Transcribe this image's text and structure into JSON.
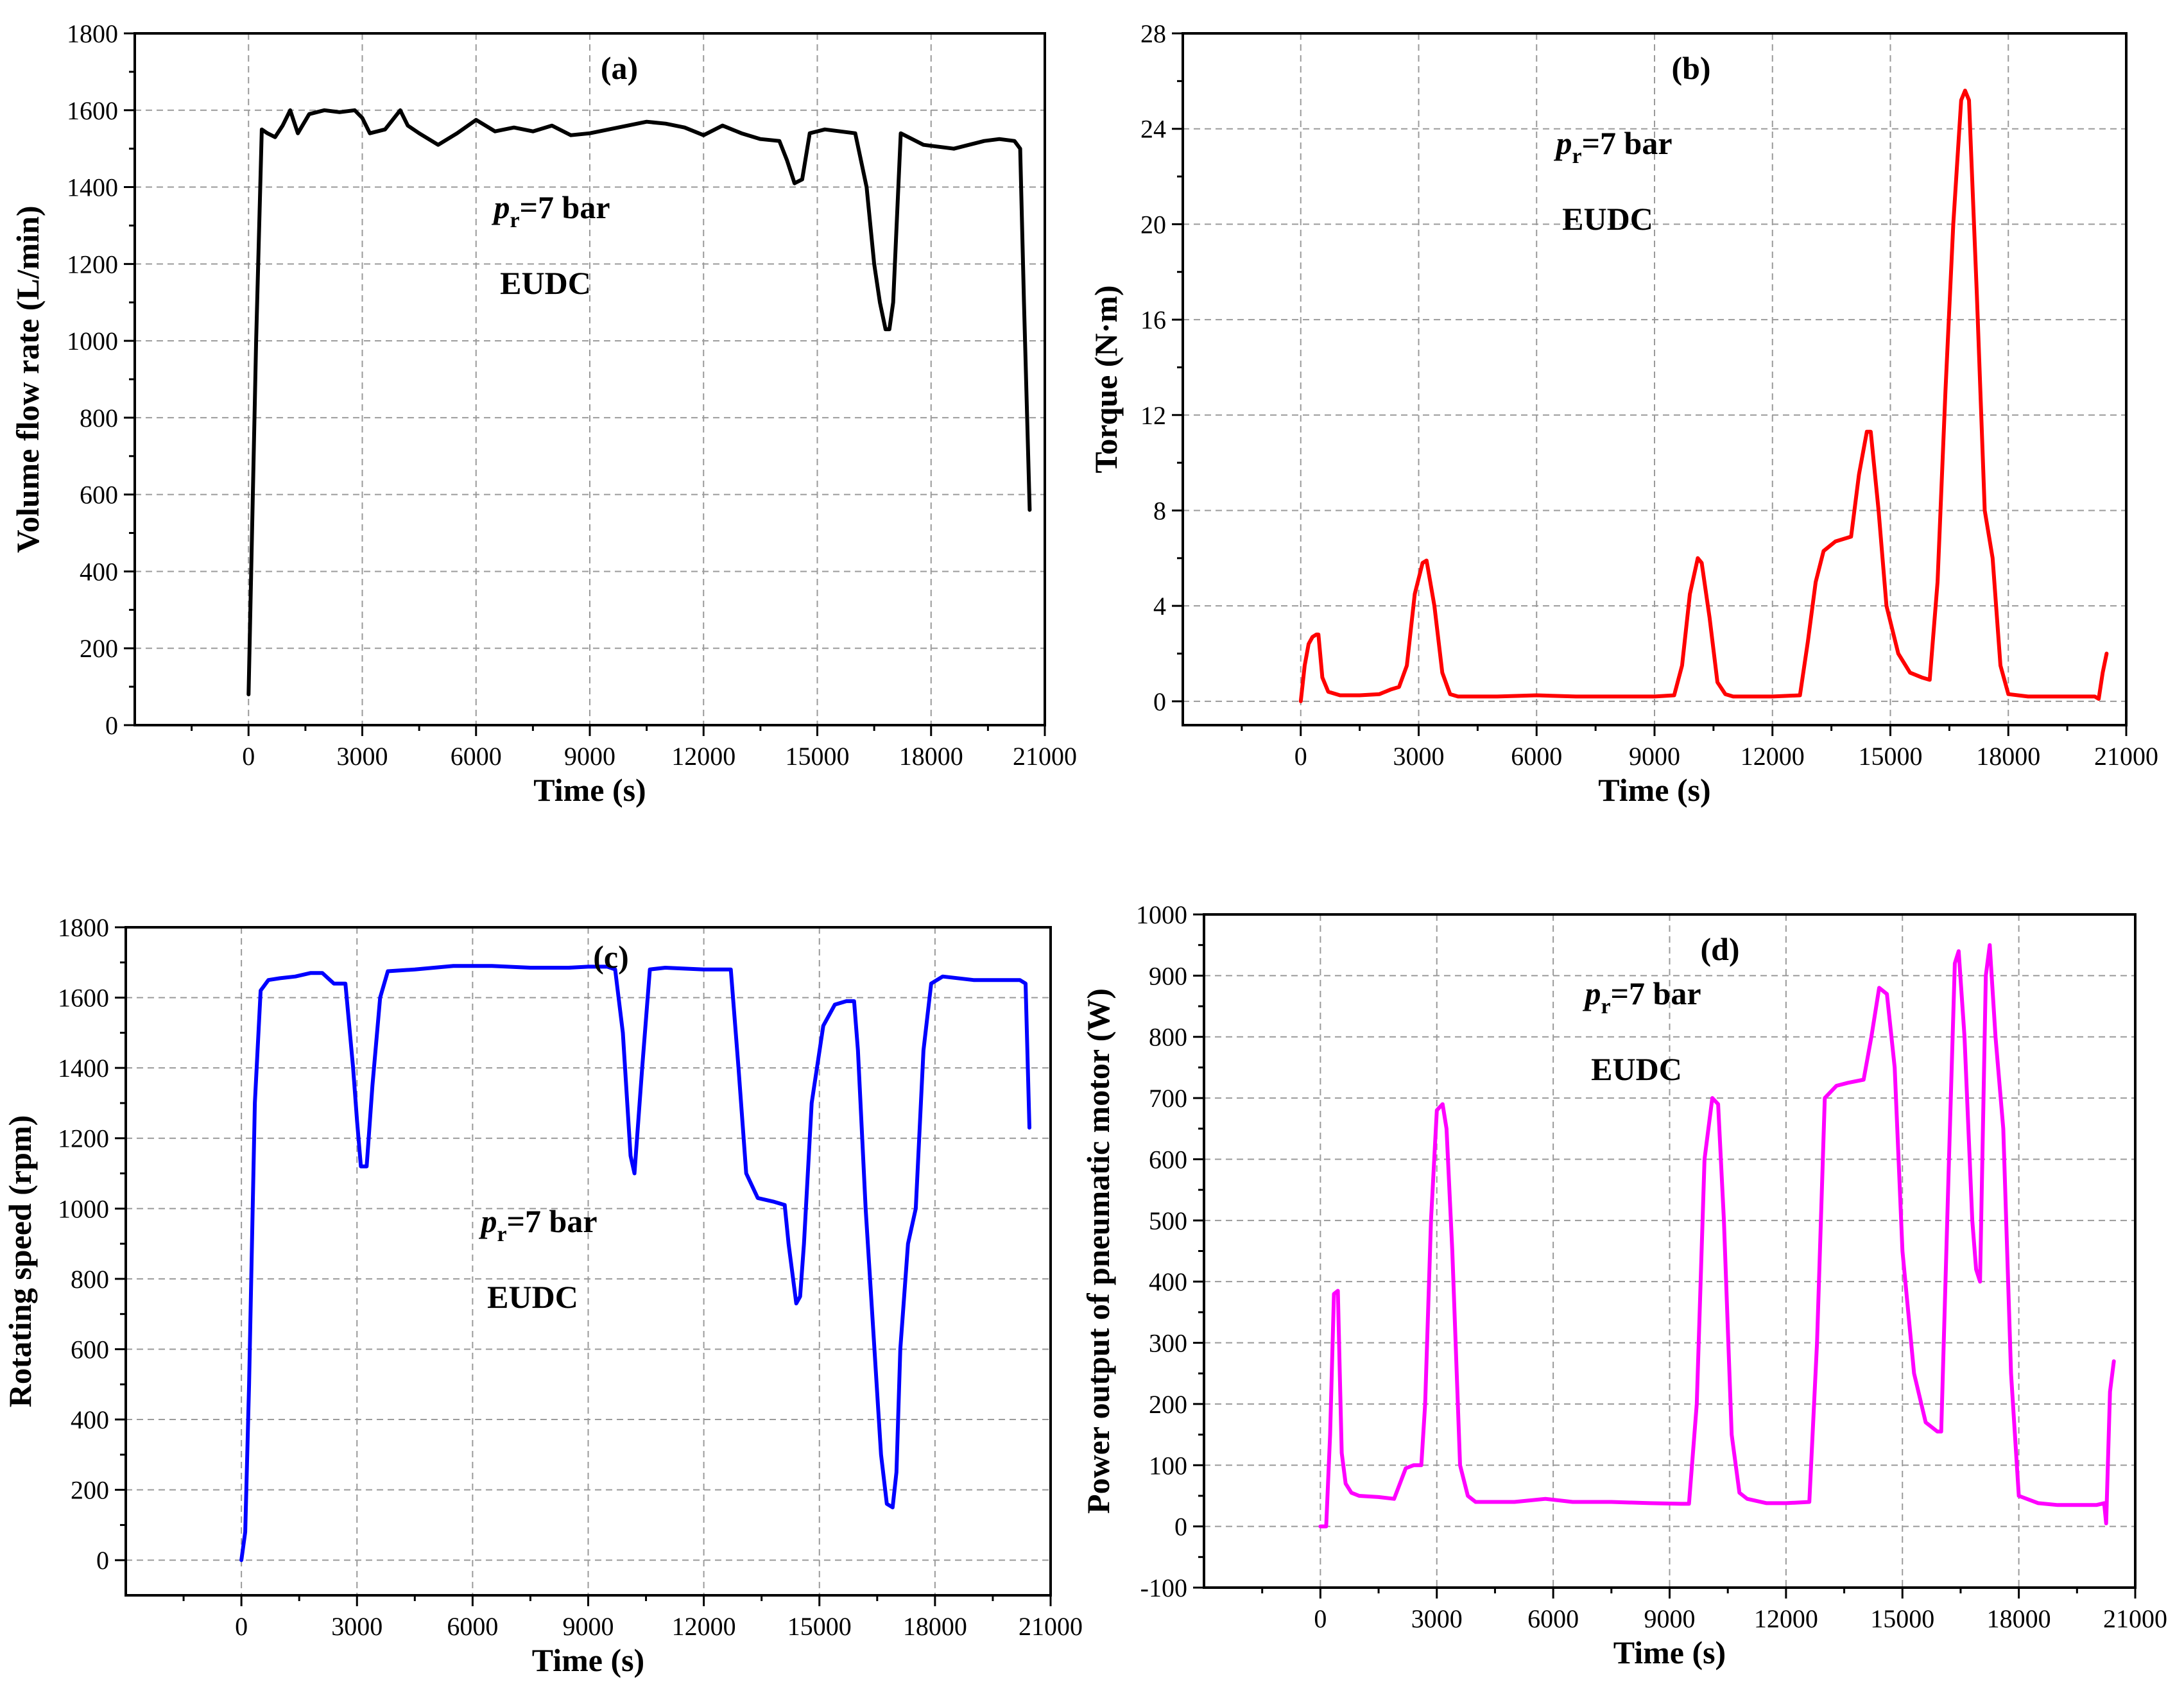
{
  "chart_data": [
    {
      "type": "line",
      "panel": "(a)",
      "color": "#000000",
      "xlabel": "Time (s)",
      "ylabel": "Volume flow rate  (L/min)",
      "xlim": [
        -3000,
        21000
      ],
      "ylim": [
        0,
        1800
      ],
      "xticks": [
        0,
        3000,
        6000,
        9000,
        12000,
        15000,
        18000,
        21000
      ],
      "yticks": [
        0,
        200,
        400,
        600,
        800,
        1000,
        1200,
        1400,
        1600,
        1800
      ],
      "grid": true,
      "annotation": {
        "p": "p",
        "sub": "r",
        "rest": "=7 bar",
        "cycle": "EUDC"
      },
      "x": [
        0,
        200,
        350,
        500,
        700,
        900,
        1100,
        1300,
        1600,
        2000,
        2400,
        2800,
        3000,
        3200,
        3600,
        4000,
        4200,
        4500,
        5000,
        5500,
        6000,
        6500,
        7000,
        7500,
        8000,
        8500,
        9000,
        9500,
        10000,
        10500,
        11000,
        11500,
        12000,
        12500,
        13000,
        13500,
        14000,
        14200,
        14400,
        14600,
        14800,
        15200,
        15600,
        16000,
        16300,
        16500,
        16650,
        16800,
        16900,
        17000,
        17200,
        17400,
        17800,
        18200,
        18600,
        19000,
        19400,
        19800,
        20200,
        20350,
        20450,
        20600
      ],
      "y": [
        80,
        1000,
        1550,
        1540,
        1530,
        1560,
        1600,
        1540,
        1590,
        1600,
        1595,
        1600,
        1580,
        1540,
        1550,
        1600,
        1560,
        1540,
        1510,
        1540,
        1575,
        1545,
        1555,
        1545,
        1560,
        1535,
        1540,
        1550,
        1560,
        1570,
        1565,
        1555,
        1535,
        1560,
        1540,
        1525,
        1520,
        1470,
        1410,
        1420,
        1540,
        1550,
        1545,
        1540,
        1400,
        1200,
        1100,
        1030,
        1030,
        1100,
        1540,
        1530,
        1510,
        1505,
        1500,
        1510,
        1520,
        1525,
        1520,
        1500,
        1100,
        560
      ]
    },
    {
      "type": "line",
      "panel": "(b)",
      "color": "#ff0000",
      "xlabel": "Time (s)",
      "ylabel": "Torque (N·m)",
      "xlim": [
        -3000,
        21000
      ],
      "ylim": [
        -1,
        28
      ],
      "xticks": [
        0,
        3000,
        6000,
        9000,
        12000,
        15000,
        18000,
        21000
      ],
      "yticks": [
        0,
        4,
        8,
        12,
        16,
        20,
        24,
        28
      ],
      "grid": true,
      "annotation": {
        "p": "p",
        "sub": "r",
        "rest": "=7 bar",
        "cycle": "EUDC"
      },
      "x": [
        0,
        100,
        200,
        300,
        400,
        450,
        550,
        700,
        1000,
        1500,
        2000,
        2300,
        2500,
        2700,
        2900,
        3100,
        3200,
        3400,
        3600,
        3800,
        4000,
        5000,
        6000,
        7000,
        8000,
        9000,
        9500,
        9700,
        9900,
        10100,
        10200,
        10400,
        10600,
        10800,
        11000,
        12000,
        12700,
        12900,
        13100,
        13300,
        13600,
        14000,
        14200,
        14400,
        14500,
        14700,
        14900,
        15200,
        15500,
        15800,
        16000,
        16200,
        16400,
        16600,
        16800,
        16900,
        17000,
        17200,
        17400,
        17600,
        17800,
        18000,
        18500,
        19000,
        19500,
        20000,
        20200,
        20300,
        20400,
        20500
      ],
      "y": [
        0,
        1.5,
        2.4,
        2.7,
        2.8,
        2.8,
        1.0,
        0.4,
        0.25,
        0.25,
        0.3,
        0.5,
        0.6,
        1.5,
        4.5,
        5.8,
        5.9,
        4.0,
        1.2,
        0.3,
        0.2,
        0.2,
        0.25,
        0.2,
        0.2,
        0.2,
        0.25,
        1.5,
        4.5,
        6.0,
        5.8,
        3.5,
        0.8,
        0.3,
        0.2,
        0.2,
        0.25,
        2.5,
        5.0,
        6.3,
        6.7,
        6.9,
        9.5,
        11.3,
        11.3,
        8.0,
        4.0,
        2.0,
        1.2,
        1.0,
        0.9,
        5.0,
        13.0,
        20.0,
        25.2,
        25.6,
        25.2,
        17.0,
        8.0,
        6.0,
        1.5,
        0.3,
        0.2,
        0.2,
        0.2,
        0.2,
        0.2,
        0.1,
        1.2,
        2.0
      ]
    },
    {
      "type": "line",
      "panel": "(c)",
      "color": "#0000ff",
      "xlabel": "Time (s)",
      "ylabel": "Rotating speed (rpm)",
      "xlim": [
        -3000,
        21000
      ],
      "ylim": [
        -100,
        1800
      ],
      "xticks": [
        0,
        3000,
        6000,
        9000,
        12000,
        15000,
        18000,
        21000
      ],
      "yticks": [
        0,
        200,
        400,
        600,
        800,
        1000,
        1200,
        1400,
        1600,
        1800
      ],
      "grid": true,
      "annotation": {
        "p": "p",
        "sub": "r",
        "rest": "=7 bar",
        "cycle": "EUDC"
      },
      "x": [
        0,
        100,
        200,
        350,
        500,
        700,
        1000,
        1400,
        1800,
        2100,
        2400,
        2700,
        2900,
        3000,
        3100,
        3250,
        3400,
        3600,
        3800,
        4500,
        5500,
        6500,
        7500,
        8500,
        9000,
        9500,
        9700,
        9900,
        10100,
        10200,
        10400,
        10600,
        11000,
        12000,
        12700,
        12900,
        13100,
        13400,
        13800,
        14100,
        14200,
        14400,
        14500,
        14600,
        14800,
        15100,
        15400,
        15700,
        15900,
        16000,
        16200,
        16400,
        16600,
        16750,
        16900,
        17000,
        17100,
        17300,
        17500,
        17700,
        17900,
        18200,
        19000,
        19500,
        20000,
        20200,
        20350,
        20450
      ],
      "y": [
        0,
        80,
        500,
        1300,
        1620,
        1650,
        1655,
        1660,
        1670,
        1670,
        1640,
        1640,
        1400,
        1250,
        1120,
        1120,
        1350,
        1600,
        1675,
        1680,
        1690,
        1690,
        1685,
        1685,
        1688,
        1688,
        1680,
        1500,
        1150,
        1100,
        1400,
        1680,
        1685,
        1680,
        1680,
        1400,
        1100,
        1030,
        1020,
        1010,
        900,
        730,
        750,
        900,
        1300,
        1520,
        1580,
        1590,
        1590,
        1450,
        1000,
        650,
        300,
        160,
        150,
        250,
        600,
        900,
        1000,
        1450,
        1640,
        1660,
        1650,
        1650,
        1650,
        1650,
        1640,
        1230
      ]
    },
    {
      "type": "line",
      "panel": "(d)",
      "color": "#ff00ff",
      "xlabel": "Time (s)",
      "ylabel": "Power output of pneumatic motor (W)",
      "xlim": [
        -3000,
        21000
      ],
      "ylim": [
        -100,
        1000
      ],
      "xticks": [
        0,
        3000,
        6000,
        9000,
        12000,
        15000,
        18000,
        21000
      ],
      "yticks": [
        -100,
        0,
        100,
        200,
        300,
        400,
        500,
        600,
        700,
        800,
        900,
        1000
      ],
      "grid": true,
      "annotation": {
        "p": "p",
        "sub": "r",
        "rest": "=7 bar",
        "cycle": "EUDC"
      },
      "x": [
        0,
        150,
        250,
        350,
        450,
        500,
        550,
        650,
        800,
        1000,
        1500,
        1900,
        2200,
        2400,
        2600,
        2700,
        2850,
        3000,
        3150,
        3250,
        3400,
        3600,
        3800,
        4000,
        5000,
        5800,
        6500,
        7500,
        8500,
        9300,
        9500,
        9700,
        9900,
        10100,
        10250,
        10400,
        10600,
        10800,
        11000,
        11500,
        12000,
        12600,
        12800,
        13000,
        13300,
        13600,
        14000,
        14200,
        14400,
        14600,
        14800,
        15000,
        15300,
        15600,
        15900,
        16000,
        16200,
        16350,
        16450,
        16600,
        16800,
        16900,
        17000,
        17150,
        17250,
        17400,
        17600,
        17800,
        18000,
        18500,
        19000,
        19500,
        20000,
        20200,
        20250,
        20350,
        20450
      ],
      "y": [
        0,
        0,
        150,
        380,
        385,
        250,
        120,
        70,
        55,
        50,
        48,
        45,
        95,
        100,
        100,
        200,
        500,
        680,
        690,
        650,
        450,
        100,
        50,
        40,
        40,
        45,
        40,
        40,
        38,
        37,
        37,
        200,
        600,
        700,
        690,
        500,
        150,
        55,
        45,
        38,
        38,
        40,
        300,
        700,
        720,
        725,
        730,
        800,
        880,
        870,
        750,
        450,
        250,
        170,
        155,
        155,
        600,
        920,
        940,
        800,
        500,
        420,
        400,
        900,
        950,
        800,
        650,
        250,
        50,
        38,
        35,
        35,
        35,
        38,
        5,
        220,
        270
      ]
    }
  ]
}
